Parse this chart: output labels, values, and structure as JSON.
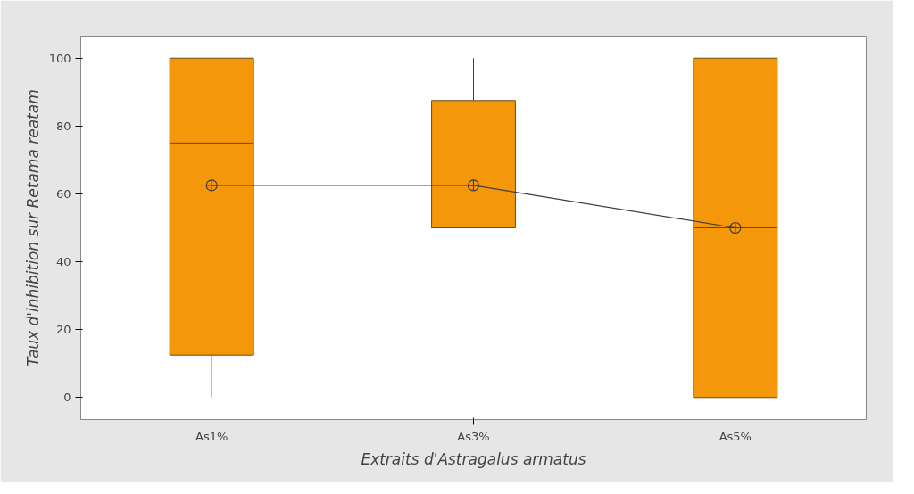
{
  "chart_data": {
    "type": "box",
    "xlabel": "Extraits d'Astragalus armatus",
    "ylabel": "Taux d'inhibition sur Retama reatam",
    "categories": [
      "As1%",
      "As3%",
      "As5%"
    ],
    "color": "#f5970b",
    "boxes": [
      {
        "low": 0,
        "q1": 12.5,
        "median": 75,
        "q3": 100,
        "high": 100,
        "mean": 62.5
      },
      {
        "low": 50,
        "q1": 50,
        "median": 50,
        "q3": 87.5,
        "high": 100,
        "mean": 62.5
      },
      {
        "low": 0,
        "q1": 0,
        "median": 50,
        "q3": 100,
        "high": 100,
        "mean": 50
      }
    ],
    "series": [
      {
        "type": "line",
        "color": "#404040",
        "values": [
          62.5,
          62.5,
          50
        ]
      }
    ],
    "ylim": [
      -6.5,
      106.5
    ],
    "yticks": [
      0,
      20,
      40,
      60,
      80,
      100
    ],
    "grid": false
  }
}
